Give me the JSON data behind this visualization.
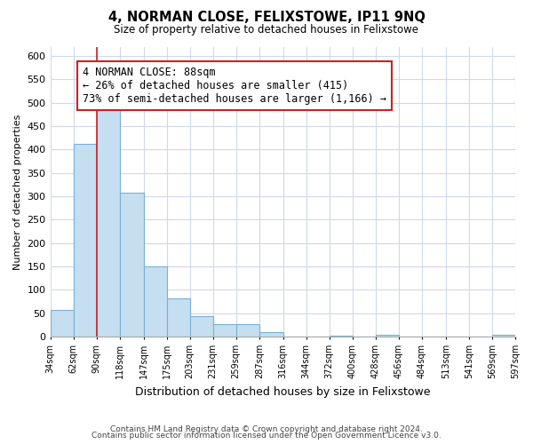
{
  "title": "4, NORMAN CLOSE, FELIXSTOWE, IP11 9NQ",
  "subtitle": "Size of property relative to detached houses in Felixstowe",
  "bar_values": [
    57,
    413,
    496,
    308,
    150,
    82,
    44,
    26,
    26,
    10,
    0,
    0,
    3,
    0,
    5,
    0,
    0,
    0,
    0,
    5
  ],
  "bin_labels": [
    "34sqm",
    "62sqm",
    "90sqm",
    "118sqm",
    "147sqm",
    "175sqm",
    "203sqm",
    "231sqm",
    "259sqm",
    "287sqm",
    "316sqm",
    "344sqm",
    "372sqm",
    "400sqm",
    "428sqm",
    "456sqm",
    "484sqm",
    "513sqm",
    "541sqm",
    "569sqm",
    "597sqm"
  ],
  "xlabel": "Distribution of detached houses by size in Felixstowe",
  "ylabel": "Number of detached properties",
  "ylim": [
    0,
    620
  ],
  "yticks": [
    0,
    50,
    100,
    150,
    200,
    250,
    300,
    350,
    400,
    450,
    500,
    550,
    600
  ],
  "bar_color": "#c5dff0",
  "bar_edge_color": "#7bafd4",
  "highlight_line_color": "#cc2222",
  "annotation_text": "4 NORMAN CLOSE: 88sqm\n← 26% of detached houses are smaller (415)\n73% of semi-detached houses are larger (1,166) →",
  "annotation_box_color": "#ffffff",
  "annotation_box_edge": "#cc2222",
  "footer_line1": "Contains HM Land Registry data © Crown copyright and database right 2024.",
  "footer_line2": "Contains public sector information licensed under the Open Government Licence v3.0.",
  "background_color": "#ffffff",
  "grid_color": "#d0d8e8"
}
